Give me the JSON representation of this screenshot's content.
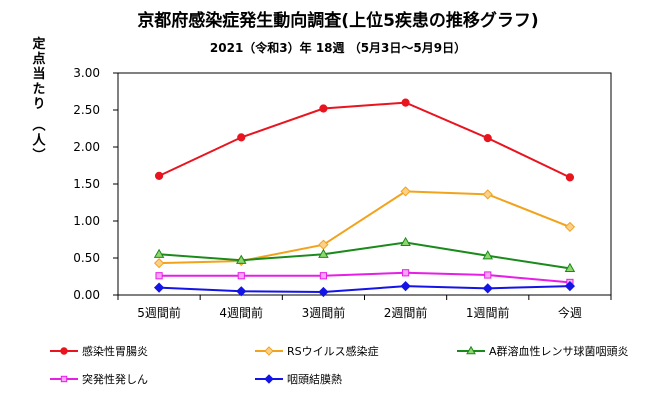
{
  "chart_data": {
    "type": "line",
    "title": "京都府感染症発生動向調査(上位5疾患の推移グラフ)",
    "subtitle": "2021（令和3）年 18週 （5月3日～5月9日）",
    "ylabel": "定点当たり （人）",
    "xlabel": "",
    "categories": [
      "5週間前",
      "4週間前",
      "3週間前",
      "2週間前",
      "1週間前",
      "今週"
    ],
    "ylim": [
      0,
      3.0
    ],
    "yticks": [
      "0.00",
      "0.50",
      "1.00",
      "1.50",
      "2.00",
      "2.50",
      "3.00"
    ],
    "grid": false,
    "legend_position": "bottom",
    "series": [
      {
        "name": "感染性胃腸炎",
        "color": "#e8141e",
        "marker": "circle",
        "values": [
          1.61,
          2.13,
          2.52,
          2.6,
          2.12,
          1.59
        ]
      },
      {
        "name": "RSウイルス感染症",
        "color": "#f2a31c",
        "marker": "diamond",
        "values": [
          0.43,
          0.46,
          0.68,
          1.4,
          1.36,
          0.92
        ]
      },
      {
        "name": "A群溶血性レンサ球菌咽頭炎",
        "color": "#1a8a1a",
        "marker": "triangle",
        "values": [
          0.55,
          0.47,
          0.55,
          0.71,
          0.53,
          0.36
        ]
      },
      {
        "name": "突発性発しん",
        "color": "#e61ee6",
        "marker": "square",
        "values": [
          0.26,
          0.26,
          0.26,
          0.3,
          0.27,
          0.17
        ]
      },
      {
        "name": "咽頭結膜熱",
        "color": "#1414e6",
        "marker": "diamond",
        "values": [
          0.1,
          0.05,
          0.04,
          0.12,
          0.09,
          0.12
        ]
      }
    ]
  }
}
